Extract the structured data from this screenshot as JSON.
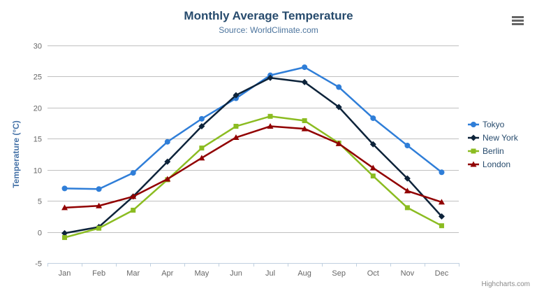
{
  "header": {
    "title": "Monthly Average Temperature",
    "subtitle": "Source: WorldClimate.com"
  },
  "credits": {
    "label": "Highcharts.com"
  },
  "export_menu": {
    "icon": "hamburger-icon"
  },
  "colors": {
    "title": "#274b6d",
    "subtitle": "#4d759e",
    "axis_label": "#666666",
    "yaxis_title": "#4572A7",
    "gridline": "#C0C0C0",
    "axis_line": "#C0D0E0",
    "legend_text": "#274b6d",
    "credits": "#8a8a8a"
  },
  "chart_data": {
    "type": "line",
    "title": "Monthly Average Temperature",
    "subtitle": "Source: WorldClimate.com",
    "xlabel": "",
    "ylabel": "Temperature (°C)",
    "ylim": [
      -5,
      30
    ],
    "ytick_interval": 5,
    "grid": true,
    "legend_position": "right",
    "categories": [
      "Jan",
      "Feb",
      "Mar",
      "Apr",
      "May",
      "Jun",
      "Jul",
      "Aug",
      "Sep",
      "Oct",
      "Nov",
      "Dec"
    ],
    "series": [
      {
        "name": "Tokyo",
        "color": "#2f7ed8",
        "marker": "circle",
        "values": [
          7.0,
          6.9,
          9.5,
          14.5,
          18.2,
          21.5,
          25.2,
          26.5,
          23.3,
          18.3,
          13.9,
          9.6
        ]
      },
      {
        "name": "New York",
        "color": "#0d233a",
        "marker": "diamond",
        "values": [
          -0.2,
          0.8,
          5.7,
          11.3,
          17.0,
          22.0,
          24.8,
          24.1,
          20.1,
          14.1,
          8.6,
          2.5
        ]
      },
      {
        "name": "Berlin",
        "color": "#8bbc21",
        "marker": "square",
        "values": [
          -0.9,
          0.6,
          3.5,
          8.4,
          13.5,
          17.0,
          18.6,
          17.9,
          14.3,
          9.0,
          3.9,
          1.0
        ]
      },
      {
        "name": "London",
        "color": "#910000",
        "marker": "triangle",
        "values": [
          3.9,
          4.2,
          5.7,
          8.5,
          11.9,
          15.2,
          17.0,
          16.6,
          14.2,
          10.3,
          6.6,
          4.8
        ]
      }
    ]
  }
}
